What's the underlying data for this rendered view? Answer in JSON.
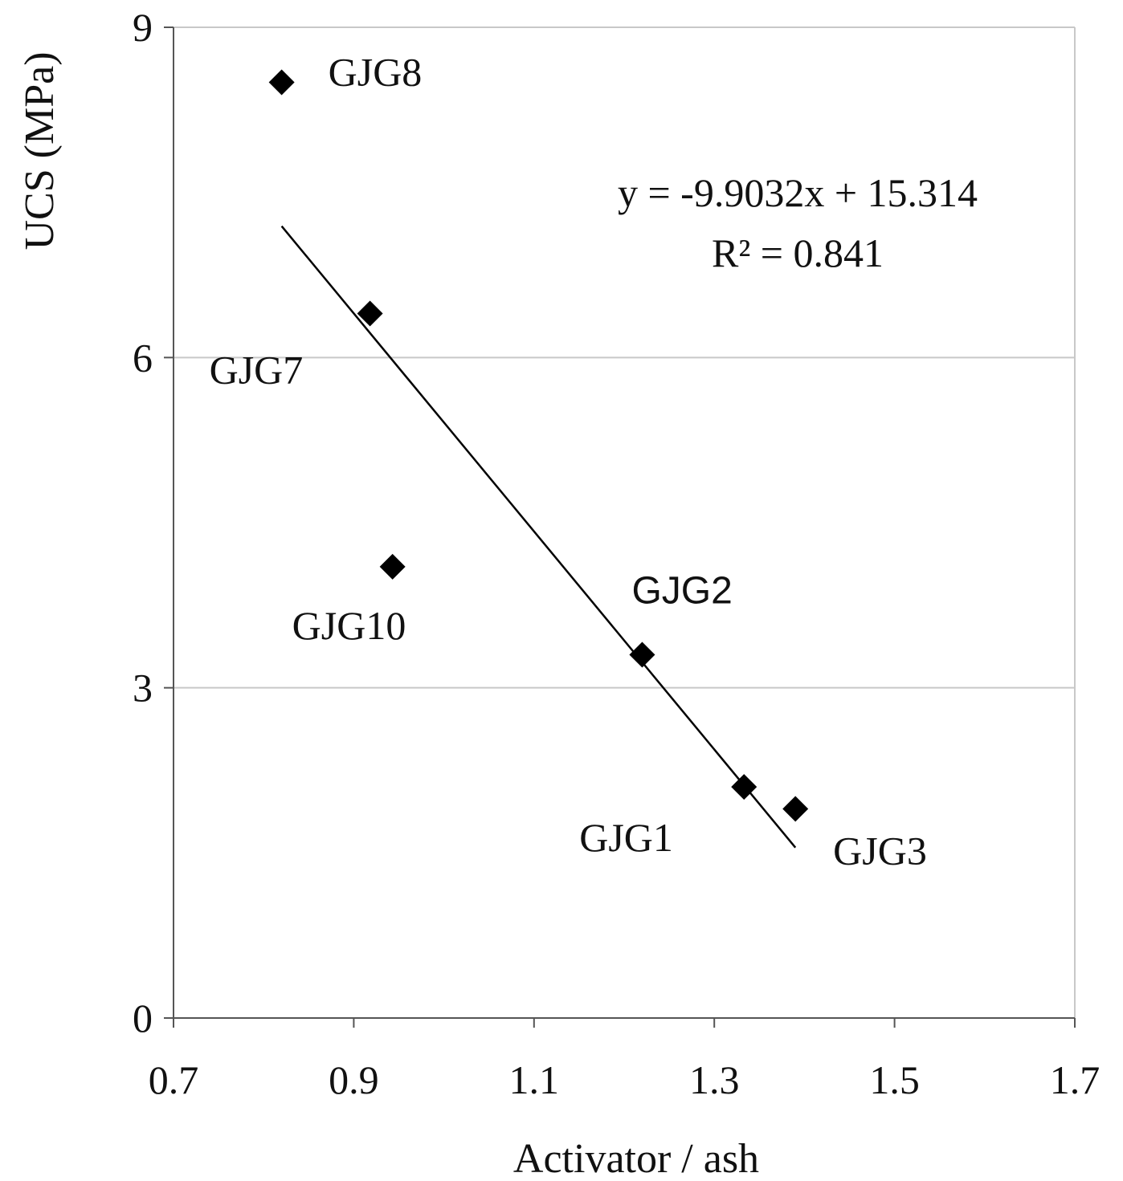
{
  "chart_data": {
    "type": "scatter",
    "xlabel": "Activator / ash",
    "ylabel": "UCS (MPa)",
    "xlim": [
      0.7,
      1.7
    ],
    "ylim": [
      0,
      9
    ],
    "x_ticks": [
      "0.7",
      "0.9",
      "1.1",
      "1.3",
      "1.5",
      "1.7"
    ],
    "y_ticks": [
      "0",
      "3",
      "6",
      "9"
    ],
    "grid": "horizontal",
    "points": [
      {
        "label": "GJG8",
        "x": 0.82,
        "y": 8.5
      },
      {
        "label": "GJG7",
        "x": 0.918,
        "y": 6.4
      },
      {
        "label": "GJG10",
        "x": 0.943,
        "y": 4.1
      },
      {
        "label": "GJG2",
        "x": 1.22,
        "y": 3.3
      },
      {
        "label": "GJG1",
        "x": 1.333,
        "y": 2.1
      },
      {
        "label": "GJG3",
        "x": 1.39,
        "y": 1.9
      }
    ],
    "trendline": {
      "equation": "y = -9.9032x + 15.314",
      "r2_text": "R² = 0.841",
      "slope": -9.9032,
      "intercept": 15.314,
      "x_range": [
        0.82,
        1.39
      ]
    }
  }
}
